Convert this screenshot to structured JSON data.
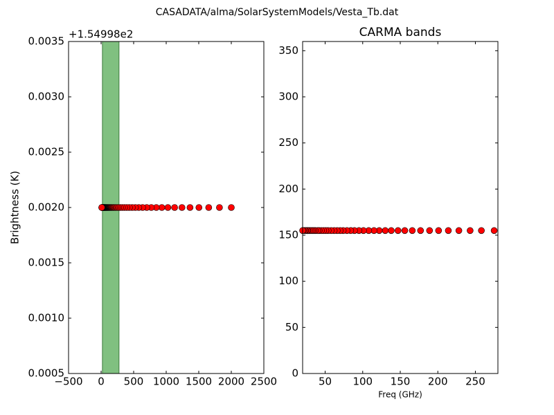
{
  "title": "CASADATA/alma/SolarSystemModels/Vesta_Tb.dat",
  "chart_data": [
    {
      "type": "scatter",
      "offset_text": "+1.54998e2",
      "ylabel": "Brightness (K)",
      "xlim": [
        -500,
        2500
      ],
      "xticks": [
        {
          "value": -500,
          "label": "−500"
        },
        0,
        500,
        1000,
        1500,
        2000,
        2500
      ],
      "ylim": [
        0.0005,
        0.0035
      ],
      "yticks": [
        {
          "value": 0.0005,
          "label": "0.0005"
        },
        {
          "value": 0.001,
          "label": "0.0010"
        },
        {
          "value": 0.0015,
          "label": "0.0015"
        },
        {
          "value": 0.002,
          "label": "0.0020"
        },
        {
          "value": 0.0025,
          "label": "0.0025"
        },
        {
          "value": 0.003,
          "label": "0.0030"
        },
        {
          "value": 0.0035,
          "label": "0.0035"
        }
      ],
      "bands": [
        {
          "color": "#80c080",
          "x": [
            20,
            275
          ]
        }
      ],
      "series": [
        {
          "color": "#ff0000",
          "x": [
            2000,
            1818,
            1653,
            1503,
            1366,
            1242,
            1129,
            1026,
            933,
            848,
            771,
            701,
            637,
            579,
            527,
            479,
            435,
            396,
            360,
            327,
            297,
            270,
            246,
            223,
            203,
            185,
            168,
            153,
            139,
            126,
            115,
            104,
            95,
            86,
            78,
            71,
            65,
            59,
            54,
            49,
            44,
            40,
            37,
            33,
            30,
            28,
            25,
            23,
            21,
            19,
            17,
            15,
            14,
            13,
            12,
            11,
            10
          ],
          "values": [
            0.002,
            0.002,
            0.002,
            0.002,
            0.002,
            0.002,
            0.002,
            0.002,
            0.002,
            0.002,
            0.002,
            0.002,
            0.002,
            0.002,
            0.002,
            0.002,
            0.002,
            0.002,
            0.002,
            0.002,
            0.002,
            0.002,
            0.002,
            0.002,
            0.002,
            0.002,
            0.002,
            0.002,
            0.002,
            0.002,
            0.002,
            0.002,
            0.002,
            0.002,
            0.002,
            0.002,
            0.002,
            0.002,
            0.002,
            0.002,
            0.002,
            0.002,
            0.002,
            0.002,
            0.002,
            0.002,
            0.002,
            0.002,
            0.002,
            0.002,
            0.002,
            0.002,
            0.002,
            0.002,
            0.002,
            0.002,
            0.002
          ]
        }
      ]
    },
    {
      "type": "scatter",
      "title": "CARMA bands",
      "xlabel": "Freq (GHz)",
      "xlim": [
        20,
        280
      ],
      "xticks": [
        50,
        100,
        150,
        200,
        250
      ],
      "ylim": [
        0,
        360
      ],
      "yticks": [
        0,
        50,
        100,
        150,
        200,
        250,
        300,
        350
      ],
      "series": [
        {
          "color": "#ff0000",
          "x": [
            275,
            258,
            243,
            228,
            214,
            201,
            189,
            177,
            166,
            156,
            147,
            138,
            130,
            122,
            115,
            108,
            101,
            95,
            89,
            84,
            79,
            74,
            70,
            66,
            62,
            58,
            54,
            51,
            48,
            45,
            42,
            40,
            37,
            35,
            33,
            31,
            29,
            27,
            26,
            24,
            23,
            21,
            20
          ],
          "values": [
            155,
            155,
            155,
            155,
            155,
            155,
            155,
            155,
            155,
            155,
            155,
            155,
            155,
            155,
            155,
            155,
            155,
            155,
            155,
            155,
            155,
            155,
            155,
            155,
            155,
            155,
            155,
            155,
            155,
            155,
            155,
            155,
            155,
            155,
            155,
            155,
            155,
            155,
            155,
            155,
            155,
            155,
            155
          ]
        }
      ]
    }
  ]
}
